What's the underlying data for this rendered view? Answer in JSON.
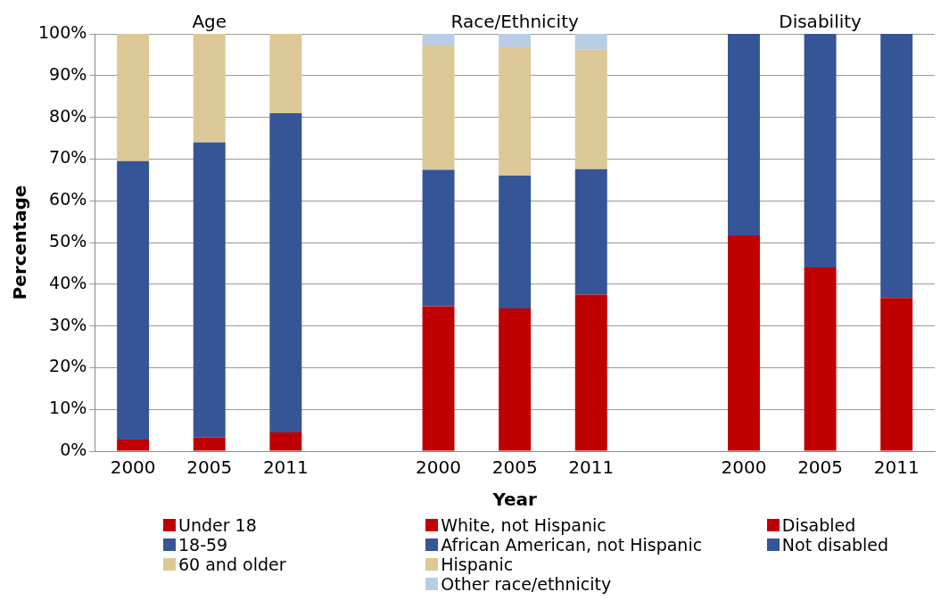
{
  "chart_data": {
    "type": "bar",
    "stacked": true,
    "xlabel": "Year",
    "ylabel": "Percentage",
    "categories": [
      "2000",
      "2005",
      "2011",
      null,
      "2000",
      "2005",
      "2011",
      null,
      "2000",
      "2005",
      "2011"
    ],
    "annotations": [
      "Age",
      "Race/Ethnicity",
      "Disability"
    ],
    "ylim": [
      0,
      100
    ],
    "yticks": [
      {
        "value": 0,
        "label": "0%"
      },
      {
        "value": 10,
        "label": "10%"
      },
      {
        "value": 20,
        "label": "20%"
      },
      {
        "value": 30,
        "label": "30%"
      },
      {
        "value": 40,
        "label": "40%"
      },
      {
        "value": 50,
        "label": "50%"
      },
      {
        "value": 60,
        "label": "60%"
      },
      {
        "value": 70,
        "label": "70%"
      },
      {
        "value": 80,
        "label": "80%"
      },
      {
        "value": 90,
        "label": "90%"
      },
      {
        "value": 100,
        "label": "100%"
      }
    ],
    "grid": "y",
    "legend": "bottom",
    "series": [
      {
        "name": "Under 18",
        "color": "#c00000",
        "values": [
          2.8,
          3.3,
          4.5,
          null,
          null,
          null,
          null,
          null,
          null,
          null,
          null
        ]
      },
      {
        "name": "18-59",
        "color": "#355597",
        "values": [
          66.7,
          70.7,
          76.5,
          null,
          null,
          null,
          null,
          null,
          null,
          null,
          null
        ]
      },
      {
        "name": "60 and older",
        "color": "#dcc896",
        "values": [
          30.5,
          26,
          19,
          null,
          null,
          null,
          null,
          null,
          null,
          null,
          null
        ]
      },
      {
        "name": "White, not Hispanic",
        "color": "#c00000",
        "values": [
          null,
          null,
          null,
          null,
          34.7,
          34.2,
          37.5,
          null,
          null,
          null,
          null
        ]
      },
      {
        "name": "African American, not Hispanic",
        "color": "#355597",
        "values": [
          null,
          null,
          null,
          null,
          32.7,
          31.8,
          30.1,
          null,
          null,
          null,
          null
        ]
      },
      {
        "name": "Hispanic",
        "color": "#dcc896",
        "values": [
          null,
          null,
          null,
          null,
          29.8,
          30.8,
          28.7,
          null,
          null,
          null,
          null
        ]
      },
      {
        "name": "Other race/ethnicity",
        "color": "#b9cde5",
        "values": [
          null,
          null,
          null,
          null,
          2.8,
          3.2,
          3.7,
          null,
          null,
          null,
          null
        ]
      },
      {
        "name": "Disabled",
        "color": "#c00000",
        "values": [
          null,
          null,
          null,
          null,
          null,
          null,
          null,
          null,
          51.7,
          44,
          36.7
        ]
      },
      {
        "name": "Not disabled",
        "color": "#355597",
        "values": [
          null,
          null,
          null,
          null,
          null,
          null,
          null,
          null,
          48.3,
          56,
          63.3
        ]
      }
    ]
  }
}
